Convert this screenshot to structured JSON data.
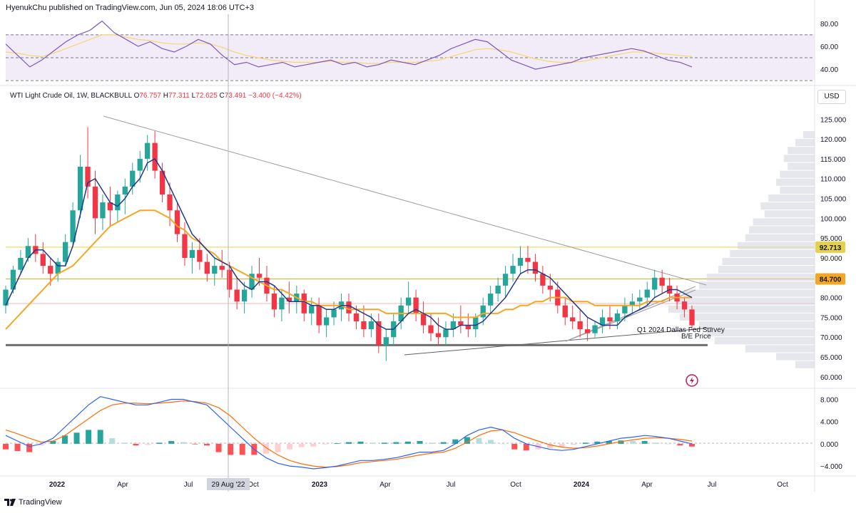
{
  "header": {
    "published_by": "HyenukChu published on TradingView.com, Jun 05, 2024 18:06 UTC+3"
  },
  "legend": {
    "symbol": "WTI Light Crude Oil, 1W, BLACKBULL",
    "o_label": "O",
    "o": "76.757",
    "h_label": "H",
    "h": "77.311",
    "l_label": "L",
    "l": "72.625",
    "c_label": "C",
    "c": "73.491",
    "change": "−3.400 (−4.42%)"
  },
  "currency_button": "USD",
  "footer": {
    "brand": "TradingView"
  },
  "colors": {
    "up": "#26a69a",
    "down": "#f23645",
    "ma_fast": "#1e3a8a",
    "ma_slow": "#f5a623",
    "rsi": "#7e57c2",
    "macd": "#2962ff",
    "signal": "#ff6d00"
  },
  "chart_data": [
    {
      "type": "line",
      "panel": "rsi",
      "ylim": [
        27,
        88
      ],
      "y_ticks": [
        "80.00",
        "60.00",
        "40.00"
      ],
      "levels": [
        70,
        50,
        30
      ],
      "series": [
        {
          "values": [
            62,
            52,
            42,
            48,
            56,
            64,
            70,
            74,
            82,
            72,
            66,
            60,
            64,
            58,
            55,
            60,
            66,
            62,
            52,
            44,
            46,
            42,
            44,
            46,
            42,
            44,
            46,
            48,
            44,
            46,
            42,
            44,
            48,
            46,
            44,
            48,
            52,
            58,
            62,
            66,
            64,
            56,
            48,
            44,
            40,
            42,
            44,
            46,
            50,
            52,
            54,
            56,
            58,
            56,
            52,
            48,
            46,
            42
          ]
        },
        {
          "values": [
            55,
            54,
            52,
            51,
            54,
            58,
            62,
            66,
            70,
            70,
            68,
            66,
            65,
            63,
            62,
            62,
            63,
            62,
            59,
            55,
            52,
            50,
            48,
            47,
            46,
            46,
            46,
            47,
            46,
            46,
            45,
            45,
            46,
            46,
            46,
            47,
            48,
            51,
            54,
            57,
            58,
            57,
            55,
            52,
            49,
            47,
            46,
            46,
            47,
            49,
            51,
            53,
            55,
            55,
            54,
            53,
            52,
            51
          ]
        }
      ]
    },
    {
      "type": "candlestick",
      "panel": "price",
      "ylim": [
        58,
        129
      ],
      "y_ticks": [
        "125.000",
        "120.000",
        "115.000",
        "110.000",
        "105.000",
        "100.000",
        "95.000",
        "90.000",
        "85.000",
        "80.000",
        "75.000",
        "70.000",
        "65.000",
        "60.000"
      ],
      "x_ticks": [
        "2022",
        "Apr",
        "Jul",
        "Oct",
        "2023",
        "Apr",
        "Jul",
        "Oct",
        "2024",
        "Apr",
        "Jul",
        "Oct"
      ],
      "crosshair_date": "29 Aug '22",
      "price_labels": [
        "92.713",
        "84.700"
      ],
      "annotation": [
        "Q1 2024 Dallas Fed Survey",
        "B/E Price"
      ],
      "candles": [
        [
          78,
          83,
          76,
          82
        ],
        [
          82,
          88,
          81,
          87
        ],
        [
          87,
          92,
          86,
          90
        ],
        [
          90,
          95,
          89,
          93
        ],
        [
          93,
          96,
          89,
          91
        ],
        [
          91,
          94,
          86,
          88
        ],
        [
          88,
          90,
          83,
          86
        ],
        [
          86,
          90,
          84,
          89
        ],
        [
          89,
          96,
          88,
          94
        ],
        [
          94,
          104,
          93,
          102
        ],
        [
          102,
          116,
          100,
          113
        ],
        [
          113,
          123,
          105,
          108
        ],
        [
          108,
          112,
          96,
          100
        ],
        [
          100,
          106,
          97,
          104
        ],
        [
          104,
          108,
          98,
          102
        ],
        [
          102,
          107,
          99,
          106
        ],
        [
          106,
          110,
          101,
          108
        ],
        [
          108,
          114,
          106,
          112
        ],
        [
          112,
          117,
          109,
          115
        ],
        [
          115,
          121,
          112,
          119
        ],
        [
          119,
          122,
          110,
          112
        ],
        [
          112,
          114,
          104,
          106
        ],
        [
          106,
          109,
          98,
          102
        ],
        [
          102,
          104,
          94,
          96
        ],
        [
          96,
          99,
          88,
          90
        ],
        [
          90,
          94,
          86,
          92
        ],
        [
          92,
          95,
          87,
          89
        ],
        [
          89,
          91,
          84,
          86
        ],
        [
          86,
          90,
          83,
          88
        ],
        [
          88,
          92,
          85,
          87
        ],
        [
          87,
          89,
          80,
          82
        ],
        [
          82,
          85,
          77,
          79
        ],
        [
          79,
          84,
          76,
          82
        ],
        [
          82,
          88,
          80,
          86
        ],
        [
          86,
          90,
          83,
          85
        ],
        [
          85,
          88,
          79,
          81
        ],
        [
          81,
          83,
          75,
          77
        ],
        [
          77,
          82,
          74,
          80
        ],
        [
          80,
          84,
          76,
          79
        ],
        [
          79,
          83,
          76,
          81
        ],
        [
          81,
          82,
          74,
          76
        ],
        [
          76,
          80,
          73,
          78
        ],
        [
          78,
          80,
          71,
          73
        ],
        [
          73,
          77,
          70,
          75
        ],
        [
          75,
          79,
          73,
          77
        ],
        [
          77,
          81,
          74,
          79
        ],
        [
          79,
          81,
          74,
          76
        ],
        [
          76,
          78,
          72,
          74
        ],
        [
          74,
          78,
          70,
          72
        ],
        [
          72,
          76,
          70,
          74
        ],
        [
          74,
          76,
          66,
          68
        ],
        [
          68,
          72,
          64,
          70
        ],
        [
          70,
          76,
          68,
          74
        ],
        [
          74,
          80,
          72,
          78
        ],
        [
          78,
          84,
          76,
          80
        ],
        [
          80,
          82,
          74,
          76
        ],
        [
          76,
          79,
          71,
          73
        ],
        [
          73,
          76,
          69,
          71
        ],
        [
          71,
          75,
          68,
          70
        ],
        [
          70,
          74,
          68,
          72
        ],
        [
          72,
          76,
          70,
          74
        ],
        [
          74,
          78,
          71,
          73
        ],
        [
          73,
          76,
          70,
          72
        ],
        [
          72,
          76,
          70,
          75
        ],
        [
          75,
          80,
          73,
          78
        ],
        [
          78,
          83,
          76,
          81
        ],
        [
          81,
          85,
          79,
          83
        ],
        [
          83,
          88,
          80,
          86
        ],
        [
          86,
          91,
          84,
          88
        ],
        [
          88,
          93,
          86,
          90
        ],
        [
          90,
          93,
          86,
          89
        ],
        [
          89,
          91,
          84,
          86
        ],
        [
          86,
          88,
          81,
          83
        ],
        [
          83,
          86,
          79,
          82
        ],
        [
          82,
          84,
          76,
          78
        ],
        [
          78,
          80,
          73,
          75
        ],
        [
          75,
          78,
          72,
          74
        ],
        [
          74,
          77,
          70,
          72
        ],
        [
          72,
          75,
          69,
          71
        ],
        [
          71,
          74,
          70,
          73
        ],
        [
          73,
          77,
          71,
          75
        ],
        [
          75,
          78,
          72,
          74
        ],
        [
          74,
          77,
          72,
          76
        ],
        [
          76,
          80,
          74,
          78
        ],
        [
          78,
          81,
          76,
          79
        ],
        [
          79,
          82,
          77,
          80
        ],
        [
          80,
          84,
          78,
          82
        ],
        [
          82,
          87,
          80,
          85
        ],
        [
          85,
          87,
          81,
          83
        ],
        [
          83,
          85,
          79,
          81
        ],
        [
          81,
          83,
          77,
          79
        ],
        [
          79,
          80,
          75,
          77
        ],
        [
          77,
          78,
          72,
          73
        ]
      ],
      "series": [
        {
          "values": [
            78,
            82,
            86,
            90,
            92,
            92,
            90,
            88,
            88,
            93,
            101,
            109,
            110,
            107,
            104,
            103,
            105,
            108,
            110,
            114,
            115,
            112,
            108,
            104,
            100,
            96,
            94,
            92,
            90,
            89,
            88,
            85,
            83,
            82,
            84,
            84,
            83,
            81,
            79,
            79,
            79,
            78,
            78,
            77,
            77,
            78,
            78,
            77,
            76,
            75,
            73,
            72,
            72,
            74,
            76,
            77,
            76,
            75,
            73,
            72,
            72,
            73,
            73,
            73,
            74,
            76,
            78,
            80,
            83,
            86,
            87,
            87,
            86,
            85,
            83,
            81,
            79,
            77,
            75,
            74,
            73,
            73,
            73,
            75,
            76,
            77,
            78,
            80,
            81,
            82,
            82,
            81,
            80
          ]
        },
        {
          "values": [
            72,
            74,
            76,
            78,
            80,
            82,
            84,
            86,
            87,
            88,
            90,
            92,
            94,
            96,
            98,
            99,
            100,
            101,
            102,
            102,
            102,
            101,
            100,
            98,
            97,
            95,
            94,
            92,
            91,
            89,
            88,
            87,
            86,
            85,
            84,
            83,
            82,
            82,
            81,
            80,
            79,
            79,
            78,
            78,
            78,
            78,
            77,
            77,
            77,
            77,
            77,
            76,
            76,
            76,
            76,
            76,
            76,
            76,
            76,
            76,
            75,
            75,
            75,
            75,
            76,
            76,
            76,
            77,
            77,
            78,
            78,
            79,
            79,
            80,
            80,
            80,
            79,
            79,
            79,
            78,
            78,
            78,
            78,
            78,
            78,
            78,
            79,
            79,
            79,
            80,
            80,
            80,
            80
          ]
        }
      ]
    },
    {
      "type": "line",
      "panel": "macd",
      "ylim": [
        -5.4,
        9.6
      ],
      "y_ticks": [
        "8.000",
        "4.000",
        "0.000",
        "−4.000"
      ],
      "series": [
        {
          "values": [
            1.5,
            0.5,
            -0.5,
            0,
            1,
            3,
            5,
            7,
            8.5,
            8,
            7.5,
            7,
            7,
            7.5,
            8,
            8,
            7.5,
            7,
            5,
            3,
            1,
            -1,
            -2.5,
            -3.5,
            -4,
            -4.2,
            -4.5,
            -4.3,
            -4,
            -3.5,
            -3,
            -3,
            -2.8,
            -2.5,
            -2,
            -1.5,
            -1.5,
            -1.2,
            0,
            1.5,
            2.5,
            3,
            2.5,
            1,
            0,
            -0.5,
            -1,
            -1.2,
            -1,
            -0.5,
            0,
            0.5,
            1,
            1.2,
            1.5,
            1.3,
            1,
            0.5,
            0
          ]
        },
        {
          "values": [
            2.5,
            1.8,
            1,
            0.3,
            0.5,
            1.5,
            3,
            4.5,
            6,
            7,
            7.3,
            7.3,
            7.2,
            7.3,
            7.5,
            7.7,
            7.6,
            7.3,
            6.5,
            5,
            3,
            1,
            -0.7,
            -2,
            -3,
            -3.6,
            -4,
            -4.2,
            -4.1,
            -3.8,
            -3.4,
            -3.2,
            -3,
            -2.8,
            -2.4,
            -2,
            -1.7,
            -1.5,
            -0.8,
            0.3,
            1.5,
            2.3,
            2.5,
            2,
            1.2,
            0.5,
            -0.2,
            -0.6,
            -0.8,
            -0.7,
            -0.4,
            0,
            0.4,
            0.7,
            1,
            1.1,
            1,
            0.8,
            0.5
          ]
        }
      ],
      "histogram": [
        -1,
        -1.3,
        -1.5,
        -0.3,
        0.5,
        1.5,
        2,
        2.5,
        2.5,
        1,
        0.2,
        -0.3,
        -0.2,
        0.2,
        0.5,
        0.3,
        -0.1,
        -0.3,
        -1.5,
        -2,
        -2,
        -2,
        -1.8,
        -1.5,
        -1,
        -0.6,
        -0.5,
        -0.1,
        0.1,
        0.3,
        0.4,
        0.2,
        0.2,
        0.3,
        0.4,
        0.5,
        0.2,
        0.3,
        0.8,
        1.2,
        1,
        0.7,
        0,
        -1,
        -1.2,
        -1,
        -0.8,
        -0.6,
        -0.2,
        0.2,
        0.4,
        0.5,
        0.6,
        0.5,
        0.5,
        0.2,
        0,
        -0.3,
        -0.5
      ]
    }
  ]
}
